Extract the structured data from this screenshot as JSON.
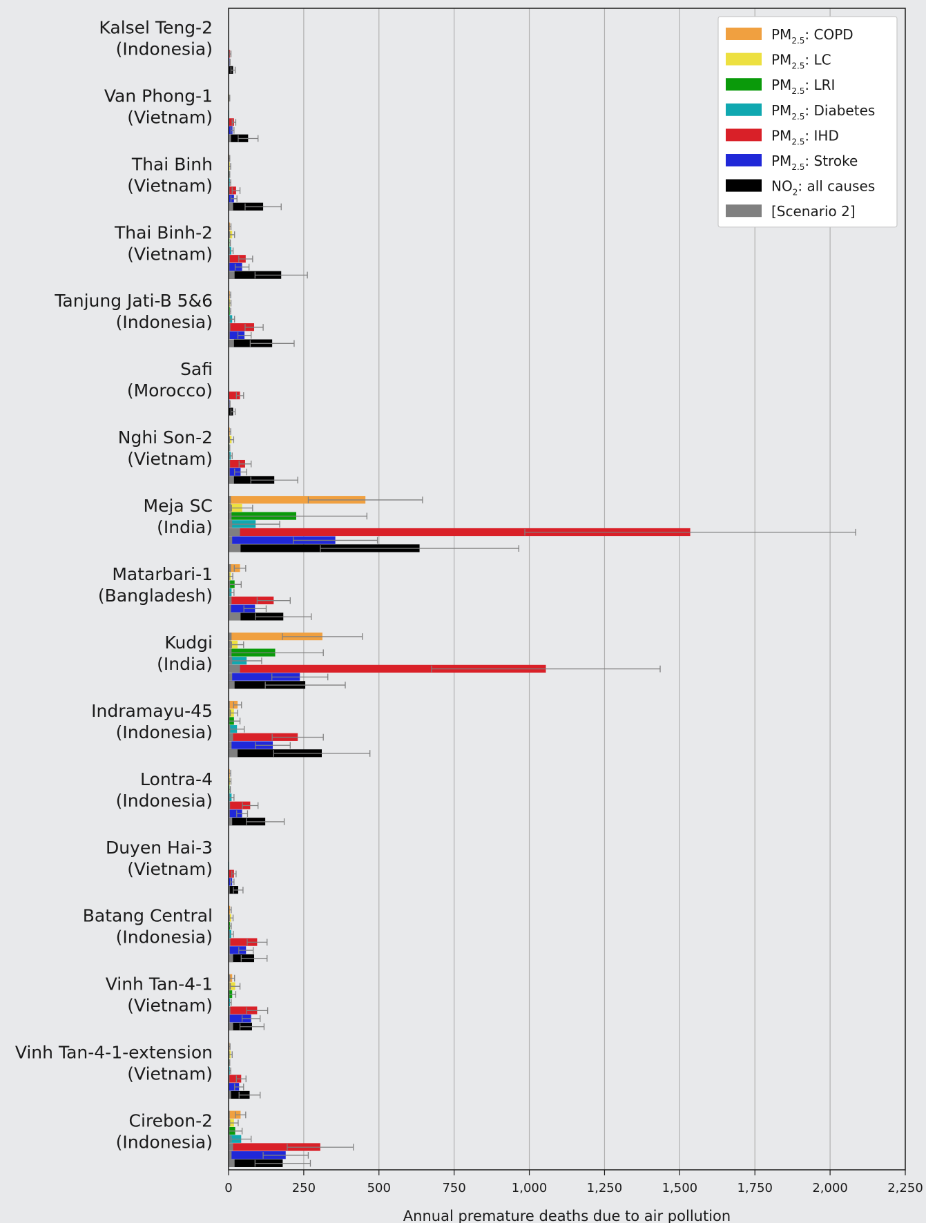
{
  "chart_data": {
    "type": "bar",
    "orientation": "horizontal",
    "xlabel": "Annual premature deaths due to air pollution",
    "xlim": [
      0,
      2250
    ],
    "xticks": [
      0,
      250,
      500,
      750,
      1000,
      1250,
      1500,
      1750,
      2000,
      2250
    ],
    "xtick_labels": [
      "0",
      "250",
      "500",
      "750",
      "1,000",
      "1,250",
      "1,500",
      "1,750",
      "2,000",
      "2,250"
    ],
    "grid": "vertical",
    "legend_position": "top-right",
    "categories": [
      {
        "name": "Kalsel Teng-2",
        "country": "(Indonesia)"
      },
      {
        "name": "Van Phong-1",
        "country": "(Vietnam)"
      },
      {
        "name": "Thai Binh",
        "country": "(Vietnam)"
      },
      {
        "name": "Thai Binh-2",
        "country": "(Vietnam)"
      },
      {
        "name": "Tanjung Jati-B 5&6",
        "country": "(Indonesia)"
      },
      {
        "name": "Safi",
        "country": "(Morocco)"
      },
      {
        "name": "Nghi Son-2",
        "country": "(Vietnam)"
      },
      {
        "name": "Meja SC",
        "country": "(India)"
      },
      {
        "name": "Matarbari-1",
        "country": "(Bangladesh)"
      },
      {
        "name": "Kudgi",
        "country": "(India)"
      },
      {
        "name": "Indramayu-45",
        "country": "(Indonesia)"
      },
      {
        "name": "Lontra-4",
        "country": "(Indonesia)"
      },
      {
        "name": "Duyen Hai-3",
        "country": "(Vietnam)"
      },
      {
        "name": "Batang Central",
        "country": "(Indonesia)"
      },
      {
        "name": "Vinh Tan-4-1",
        "country": "(Vietnam)"
      },
      {
        "name": "Vinh Tan-4-1-extension",
        "country": "(Vietnam)"
      },
      {
        "name": "Cirebon-2",
        "country": "(Indonesia)"
      }
    ],
    "series": [
      {
        "key": "copd",
        "prefix": "PM",
        "sub": "2.5",
        "suffix": ": COPD",
        "color": "#f0a040",
        "values": [
          1,
          1,
          2,
          5,
          4,
          1,
          4,
          455,
          38,
          312,
          30,
          4,
          1,
          5,
          12,
          3,
          40
        ],
        "ci_upper": [
          2,
          2,
          4,
          8,
          7,
          2,
          7,
          645,
          57,
          445,
          43,
          7,
          2,
          9,
          20,
          5,
          57
        ],
        "scenario2": [
          1,
          1,
          1,
          2,
          2,
          1,
          2,
          8,
          8,
          10,
          4,
          2,
          1,
          2,
          3,
          1,
          4
        ]
      },
      {
        "key": "lc",
        "prefix": "PM",
        "sub": "2.5",
        "suffix": ": LC",
        "color": "#ede040",
        "values": [
          1,
          2,
          4,
          12,
          5,
          1,
          10,
          45,
          8,
          30,
          18,
          5,
          1,
          9,
          22,
          7,
          18
        ],
        "ci_upper": [
          2,
          4,
          7,
          20,
          8,
          2,
          17,
          80,
          14,
          50,
          30,
          8,
          2,
          15,
          38,
          12,
          32
        ],
        "scenario2": [
          1,
          1,
          2,
          3,
          2,
          1,
          2,
          8,
          3,
          8,
          4,
          2,
          1,
          3,
          4,
          2,
          4
        ]
      },
      {
        "key": "lri",
        "prefix": "PM",
        "sub": "2.5",
        "suffix": ": LRI",
        "color": "#0a9a0a",
        "values": [
          0,
          0,
          2,
          3,
          4,
          0,
          2,
          225,
          20,
          155,
          18,
          3,
          1,
          5,
          12,
          2,
          22
        ],
        "ci_upper": [
          1,
          1,
          4,
          6,
          7,
          1,
          4,
          460,
          42,
          315,
          38,
          6,
          2,
          9,
          24,
          4,
          45
        ],
        "scenario2": [
          0,
          0,
          1,
          1,
          1,
          0,
          1,
          10,
          5,
          10,
          3,
          1,
          0,
          1,
          3,
          1,
          3
        ]
      },
      {
        "key": "diabetes",
        "prefix": "PM",
        "sub": "2.5",
        "suffix": ": Diabetes",
        "color": "#10a8b0",
        "values": [
          1,
          2,
          4,
          9,
          12,
          1,
          7,
          90,
          10,
          60,
          28,
          10,
          2,
          9,
          5,
          4,
          42
        ],
        "ci_upper": [
          2,
          3,
          7,
          15,
          20,
          2,
          12,
          170,
          18,
          110,
          52,
          18,
          3,
          16,
          9,
          7,
          75
        ],
        "scenario2": [
          0,
          1,
          1,
          2,
          2,
          0,
          2,
          12,
          3,
          12,
          5,
          2,
          1,
          2,
          2,
          1,
          6
        ]
      },
      {
        "key": "ihd",
        "prefix": "PM",
        "sub": "2.5",
        "suffix": ": IHD",
        "color": "#d92028",
        "values": [
          5,
          18,
          25,
          57,
          85,
          38,
          55,
          1535,
          150,
          1055,
          230,
          72,
          18,
          95,
          95,
          42,
          305
        ],
        "ci_upper": [
          8,
          24,
          38,
          80,
          115,
          50,
          75,
          2085,
          205,
          1435,
          315,
          98,
          25,
          128,
          130,
          58,
          415
        ],
        "scenario2": [
          1,
          2,
          3,
          4,
          6,
          2,
          5,
          38,
          10,
          38,
          15,
          5,
          2,
          6,
          6,
          3,
          15
        ]
      },
      {
        "key": "stroke",
        "prefix": "PM",
        "sub": "2.5",
        "suffix": ": Stroke",
        "color": "#2028d8",
        "values": [
          3,
          13,
          18,
          45,
          53,
          3,
          40,
          355,
          88,
          237,
          147,
          45,
          12,
          58,
          75,
          35,
          190
        ],
        "ci_upper": [
          5,
          18,
          28,
          68,
          75,
          5,
          60,
          495,
          125,
          330,
          205,
          63,
          18,
          82,
          105,
          50,
          265
        ],
        "scenario2": [
          1,
          1,
          2,
          3,
          4,
          1,
          4,
          12,
          8,
          12,
          10,
          4,
          1,
          4,
          4,
          2,
          10
        ]
      },
      {
        "key": "no2",
        "prefix": "NO",
        "sub": "2",
        "suffix": ": all causes",
        "color": "#000000",
        "values": [
          15,
          65,
          115,
          175,
          145,
          15,
          152,
          635,
          182,
          255,
          310,
          122,
          32,
          85,
          78,
          70,
          180
        ],
        "ci_upper": [
          22,
          98,
          175,
          262,
          218,
          22,
          230,
          965,
          275,
          388,
          470,
          185,
          48,
          128,
          118,
          105,
          272
        ],
        "scenario2": [
          2,
          8,
          15,
          20,
          18,
          2,
          18,
          40,
          40,
          20,
          30,
          12,
          4,
          15,
          15,
          8,
          20
        ]
      }
    ],
    "legend": [
      {
        "prefix": "PM",
        "sub": "2.5",
        "suffix": ": COPD",
        "color": "#f0a040"
      },
      {
        "prefix": "PM",
        "sub": "2.5",
        "suffix": ": LC",
        "color": "#ede040"
      },
      {
        "prefix": "PM",
        "sub": "2.5",
        "suffix": ": LRI",
        "color": "#0a9a0a"
      },
      {
        "prefix": "PM",
        "sub": "2.5",
        "suffix": ": Diabetes",
        "color": "#10a8b0"
      },
      {
        "prefix": "PM",
        "sub": "2.5",
        "suffix": ": IHD",
        "color": "#d92028"
      },
      {
        "prefix": "PM",
        "sub": "2.5",
        "suffix": ": Stroke",
        "color": "#2028d8"
      },
      {
        "prefix": "NO",
        "sub": "2",
        "suffix": ": all causes",
        "color": "#000000"
      },
      {
        "prefix": "",
        "sub": "",
        "suffix": "[Scenario 2]",
        "color": "#808080"
      }
    ],
    "errorbar_color": "#808080",
    "scenario2_color": "#808080"
  }
}
